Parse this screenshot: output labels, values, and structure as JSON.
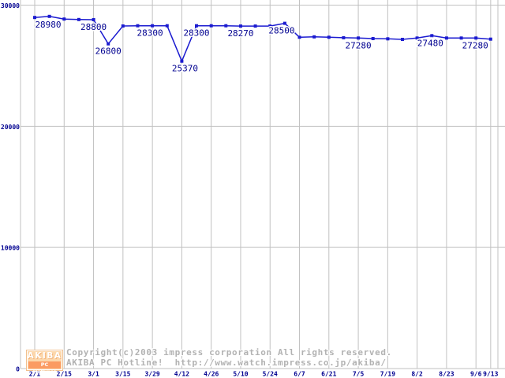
{
  "chart_data": {
    "type": "line",
    "title": "",
    "series_name": "price",
    "x": [
      "2/1",
      "2/8",
      "2/15",
      "2/22",
      "3/1",
      "3/8",
      "3/15",
      "3/22",
      "3/29",
      "4/5",
      "4/12",
      "4/19",
      "4/26",
      "5/3",
      "5/10",
      "5/17",
      "5/24",
      "5/31",
      "6/7",
      "6/14",
      "6/21",
      "6/28",
      "7/5",
      "7/12",
      "7/19",
      "7/26",
      "8/2",
      "8/16",
      "8/23",
      "8/30",
      "9/6",
      "9/13"
    ],
    "values": [
      28980,
      29070,
      28850,
      28810,
      28800,
      26800,
      28280,
      28300,
      28300,
      28300,
      25370,
      28300,
      28300,
      28300,
      28270,
      28270,
      28270,
      28500,
      27350,
      27380,
      27350,
      27310,
      27280,
      27240,
      27220,
      27170,
      27280,
      27480,
      27280,
      27280,
      27280,
      27190
    ],
    "x_tick_labels": [
      "2/1",
      "2/15",
      "3/1",
      "3/15",
      "3/29",
      "4/12",
      "4/26",
      "5/10",
      "5/24",
      "6/7",
      "6/21",
      "7/5",
      "7/19",
      "8/2",
      "8/23",
      "9/6",
      "9/13"
    ],
    "x_tick_data_indices": [
      0,
      2,
      4,
      6,
      8,
      10,
      12,
      14,
      16,
      18,
      20,
      22,
      24,
      26,
      28,
      30,
      31
    ],
    "y_tick_labels": [
      "30000",
      "20000",
      "10000",
      "0"
    ],
    "y_tick_values": [
      30000,
      20000,
      10000,
      0
    ],
    "ylim": [
      0,
      30000
    ],
    "grid": true,
    "legend": false,
    "annotations": [
      {
        "index": 0,
        "text": "28980",
        "dx": 17
      },
      {
        "index": 4,
        "text": "28800",
        "dx": 0
      },
      {
        "index": 5,
        "text": "26800",
        "dx": 0
      },
      {
        "index": 8,
        "text": "28300",
        "dx": -3
      },
      {
        "index": 10,
        "text": "25370",
        "dx": 4
      },
      {
        "index": 11,
        "text": "28300",
        "dx": 0
      },
      {
        "index": 14,
        "text": "28270",
        "dx": 0
      },
      {
        "index": 17,
        "text": "28500",
        "dx": -4
      },
      {
        "index": 22,
        "text": "27280",
        "dx": 0
      },
      {
        "index": 27,
        "text": "27480",
        "dx": -2
      },
      {
        "index": 30,
        "text": "27280",
        "dx": -1
      }
    ],
    "colors": {
      "line": "#1b1bd0",
      "marker": "#1b1bd0",
      "grid": "#c1c1c1",
      "tick_label": "#000090",
      "value_label": "#000090"
    }
  },
  "footer": {
    "logo": {
      "title": "AKIBA",
      "subtitle": "PC Hotline!"
    },
    "copyright_line1": "Copyright(c)2003 impress corporation All rights reserved.",
    "copyright_line2": "AKIBA PC Hotline!  http://www.watch.impress.co.jp/akiba/"
  }
}
